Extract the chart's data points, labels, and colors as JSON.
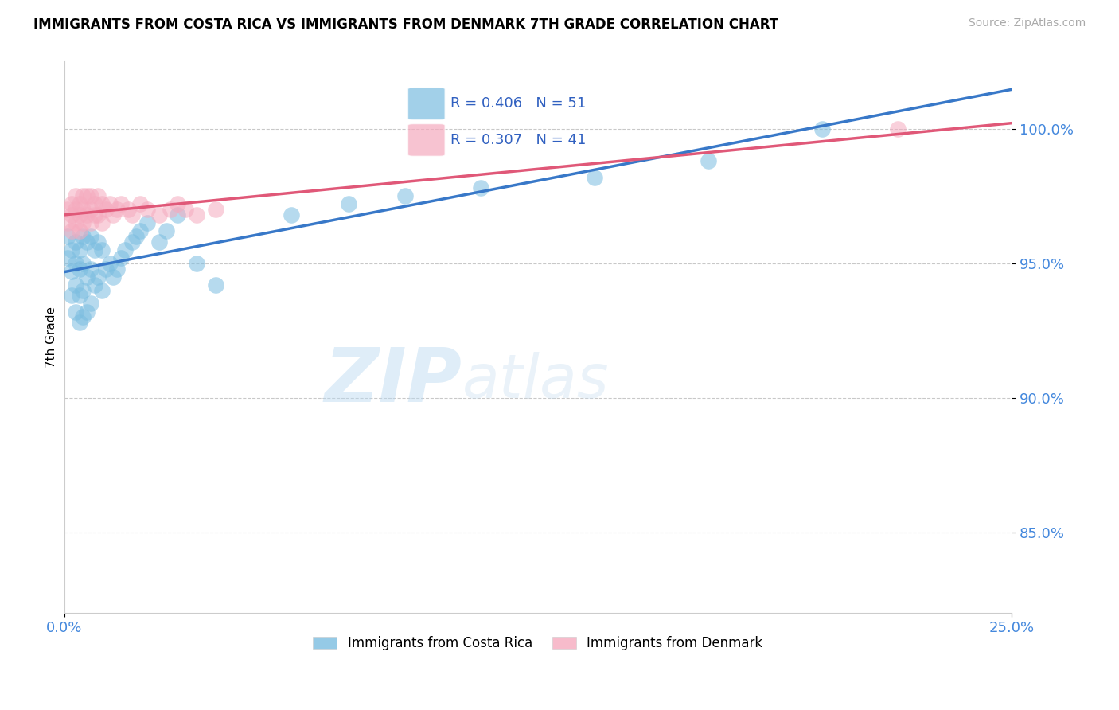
{
  "title": "IMMIGRANTS FROM COSTA RICA VS IMMIGRANTS FROM DENMARK 7TH GRADE CORRELATION CHART",
  "source_text": "Source: ZipAtlas.com",
  "ylabel": "7th Grade",
  "xlim": [
    0.0,
    0.25
  ],
  "ylim": [
    0.82,
    1.025
  ],
  "yticks": [
    0.85,
    0.9,
    0.95,
    1.0
  ],
  "ytick_labels": [
    "85.0%",
    "90.0%",
    "95.0%",
    "100.0%"
  ],
  "xticks": [
    0.0,
    0.25
  ],
  "xtick_labels": [
    "0.0%",
    "25.0%"
  ],
  "blue_R": 0.406,
  "blue_N": 51,
  "pink_R": 0.307,
  "pink_N": 41,
  "blue_color": "#7bbde0",
  "pink_color": "#f5aabe",
  "blue_line_color": "#3878c8",
  "pink_line_color": "#e05878",
  "watermark_zip": "ZIP",
  "watermark_atlas": "atlas",
  "legend_blue_label": "Immigrants from Costa Rica",
  "legend_pink_label": "Immigrants from Denmark",
  "blue_scatter_x": [
    0.001,
    0.001,
    0.002,
    0.002,
    0.002,
    0.003,
    0.003,
    0.003,
    0.003,
    0.004,
    0.004,
    0.004,
    0.004,
    0.005,
    0.005,
    0.005,
    0.005,
    0.006,
    0.006,
    0.006,
    0.007,
    0.007,
    0.007,
    0.008,
    0.008,
    0.009,
    0.009,
    0.01,
    0.01,
    0.011,
    0.012,
    0.013,
    0.014,
    0.015,
    0.016,
    0.018,
    0.019,
    0.02,
    0.022,
    0.025,
    0.027,
    0.03,
    0.035,
    0.04,
    0.06,
    0.075,
    0.09,
    0.11,
    0.14,
    0.17,
    0.2
  ],
  "blue_scatter_y": [
    0.96,
    0.952,
    0.955,
    0.947,
    0.938,
    0.958,
    0.95,
    0.942,
    0.932,
    0.955,
    0.948,
    0.938,
    0.928,
    0.96,
    0.95,
    0.94,
    0.93,
    0.958,
    0.945,
    0.932,
    0.96,
    0.948,
    0.935,
    0.955,
    0.942,
    0.958,
    0.945,
    0.955,
    0.94,
    0.948,
    0.95,
    0.945,
    0.948,
    0.952,
    0.955,
    0.958,
    0.96,
    0.962,
    0.965,
    0.958,
    0.962,
    0.968,
    0.95,
    0.942,
    0.968,
    0.972,
    0.975,
    0.978,
    0.982,
    0.988,
    1.0
  ],
  "pink_scatter_x": [
    0.001,
    0.001,
    0.002,
    0.002,
    0.002,
    0.003,
    0.003,
    0.003,
    0.004,
    0.004,
    0.004,
    0.005,
    0.005,
    0.005,
    0.006,
    0.006,
    0.007,
    0.007,
    0.007,
    0.008,
    0.008,
    0.009,
    0.009,
    0.01,
    0.01,
    0.011,
    0.012,
    0.013,
    0.014,
    0.015,
    0.017,
    0.018,
    0.02,
    0.022,
    0.025,
    0.028,
    0.03,
    0.032,
    0.035,
    0.04,
    0.22
  ],
  "pink_scatter_y": [
    0.97,
    0.965,
    0.972,
    0.968,
    0.962,
    0.975,
    0.97,
    0.965,
    0.972,
    0.968,
    0.962,
    0.975,
    0.97,
    0.965,
    0.975,
    0.968,
    0.975,
    0.97,
    0.965,
    0.972,
    0.968,
    0.975,
    0.968,
    0.972,
    0.965,
    0.97,
    0.972,
    0.968,
    0.97,
    0.972,
    0.97,
    0.968,
    0.972,
    0.97,
    0.968,
    0.97,
    0.972,
    0.97,
    0.968,
    0.97,
    1.0
  ]
}
